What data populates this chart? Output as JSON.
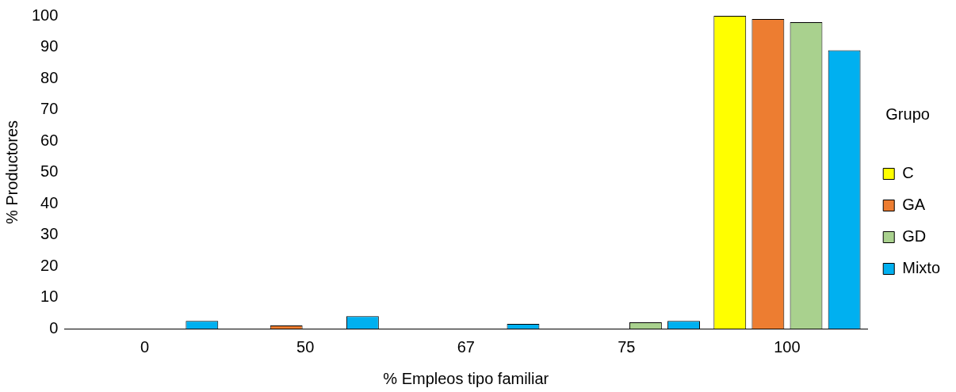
{
  "chart_data": {
    "type": "bar",
    "xlabel": "% Empleos tipo familiar",
    "ylabel": "% Productores",
    "legend_title": "Grupo",
    "legend": "right",
    "grid": false,
    "categories": [
      "0",
      "50",
      "67",
      "75",
      "100"
    ],
    "ylim": [
      0,
      100
    ],
    "yticks": [
      0,
      10,
      20,
      30,
      40,
      50,
      60,
      70,
      80,
      90,
      100
    ],
    "series": [
      {
        "name": "C",
        "color": "#ffff00",
        "values": [
          0,
          0,
          0,
          0,
          100
        ]
      },
      {
        "name": "GA",
        "color": "#ed7d31",
        "values": [
          0,
          1,
          0,
          0,
          99
        ]
      },
      {
        "name": "GD",
        "color": "#a9d18e",
        "values": [
          0,
          0,
          0,
          2,
          98
        ]
      },
      {
        "name": "Mixto",
        "color": "#00b0f0",
        "values": [
          2.5,
          4,
          1.5,
          2.5,
          89
        ]
      }
    ]
  }
}
